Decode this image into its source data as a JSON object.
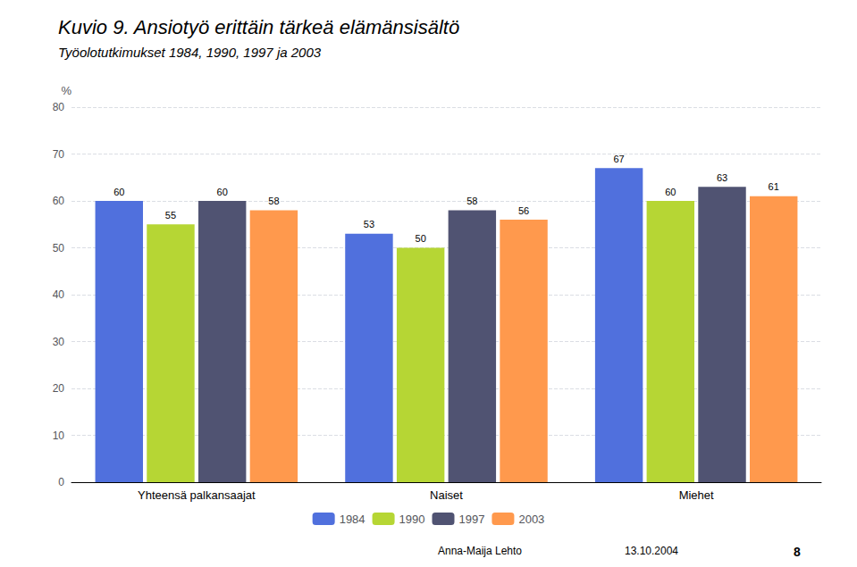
{
  "chart_data": {
    "type": "bar",
    "title": "Kuvio 9. Ansiotyö erittäin tärkeä elämänsisältö",
    "subtitle": "Työolotutkimukset 1984, 1990, 1997 ja 2003",
    "ylabel": "%",
    "categories": [
      "Yhteensä palkansaajat",
      "Naiset",
      "Miehet"
    ],
    "series": [
      {
        "name": "1984",
        "values": [
          60,
          53,
          67
        ]
      },
      {
        "name": "1990",
        "values": [
          55,
          50,
          60
        ]
      },
      {
        "name": "1997",
        "values": [
          60,
          58,
          63
        ]
      },
      {
        "name": "2003",
        "values": [
          58,
          56,
          61
        ]
      }
    ],
    "ylim": [
      0,
      80
    ],
    "yticks": [
      0,
      10,
      20,
      30,
      40,
      50,
      60,
      70,
      80
    ],
    "grid": true,
    "legend": "bottom",
    "data_labels": true,
    "annotations": [
      "Anna-Maija Lehto",
      "13.10.2004",
      "8"
    ]
  }
}
